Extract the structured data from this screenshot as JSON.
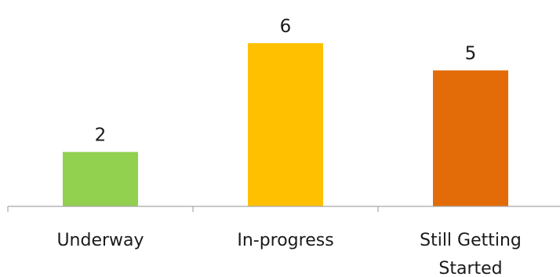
{
  "chart_data": {
    "type": "bar",
    "categories": [
      "Underway",
      "In-progress",
      "Still Getting Started"
    ],
    "values": [
      2,
      6,
      5
    ],
    "colors": [
      "#92d050",
      "#ffc000",
      "#e36c09"
    ],
    "title": "",
    "xlabel": "",
    "ylabel": "",
    "ylim": [
      0,
      6
    ],
    "grid": false,
    "legend": "none",
    "data_labels": true
  }
}
